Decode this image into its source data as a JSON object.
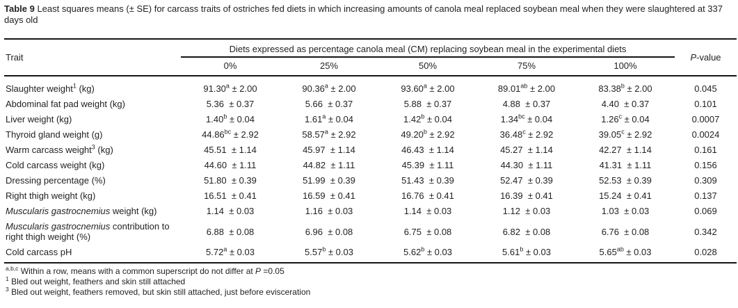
{
  "caption": {
    "label": "Table 9",
    "text": " Least squares means (± SE) for carcass traits of ostriches fed diets in which increasing amounts of canola meal replaced soybean meal when they were slaughtered at 337 days old"
  },
  "header": {
    "trait": "Trait",
    "diets_spanner": "Diets expressed as percentage canola meal (CM) replacing soybean meal in the experimental diets",
    "percent_labels": [
      "0%",
      "25%",
      "50%",
      "75%",
      "100%"
    ],
    "pvalue_italic": "P",
    "pvalue_rest": "-value"
  },
  "table": {
    "rows": [
      {
        "trait": [
          {
            "t": "Slaughter weight"
          },
          {
            "t": "1",
            "s": true
          },
          {
            "t": " (kg)"
          }
        ],
        "cells": [
          {
            "mean": "91.30",
            "sup": "a",
            "se": "2.00"
          },
          {
            "mean": "90.36",
            "sup": "a",
            "se": "2.00"
          },
          {
            "mean": "93.60",
            "sup": "a",
            "se": "2.00"
          },
          {
            "mean": "89.01",
            "sup": "ab",
            "se": "2.00"
          },
          {
            "mean": "83.38",
            "sup": "b",
            "se": "2.00"
          }
        ],
        "p": "0.045"
      },
      {
        "trait": [
          {
            "t": "Abdominal fat pad weight (kg)"
          }
        ],
        "cells": [
          {
            "mean": "5.36",
            "sup": "",
            "se": "0.37"
          },
          {
            "mean": "5.66",
            "sup": "",
            "se": "0.37"
          },
          {
            "mean": "5.88",
            "sup": "",
            "se": "0.37"
          },
          {
            "mean": "4.88",
            "sup": "",
            "se": "0.37"
          },
          {
            "mean": "4.40",
            "sup": "",
            "se": "0.37"
          }
        ],
        "p": "0.101"
      },
      {
        "trait": [
          {
            "t": "Liver weight (kg)"
          }
        ],
        "cells": [
          {
            "mean": "1.40",
            "sup": "b",
            "se": "0.04"
          },
          {
            "mean": "1.61",
            "sup": "a",
            "se": "0.04"
          },
          {
            "mean": "1.42",
            "sup": "b",
            "se": "0.04"
          },
          {
            "mean": "1.34",
            "sup": "bc",
            "se": "0.04"
          },
          {
            "mean": "1.26",
            "sup": "c",
            "se": "0.04"
          }
        ],
        "p": "0.0007"
      },
      {
        "trait": [
          {
            "t": "Thyroid gland weight (g)"
          }
        ],
        "cells": [
          {
            "mean": "44.86",
            "sup": "bc",
            "se": "2.92"
          },
          {
            "mean": "58.57",
            "sup": "a",
            "se": "2.92"
          },
          {
            "mean": "49.20",
            "sup": "b",
            "se": "2.92"
          },
          {
            "mean": "36.48",
            "sup": "c",
            "se": "2.92"
          },
          {
            "mean": "39.05",
            "sup": "c",
            "se": "2.92"
          }
        ],
        "p": "0.0024"
      },
      {
        "trait": [
          {
            "t": "Warm carcass weight"
          },
          {
            "t": "3",
            "s": true
          },
          {
            "t": " (kg)"
          }
        ],
        "cells": [
          {
            "mean": "45.51",
            "sup": "",
            "se": "1.14"
          },
          {
            "mean": "45.97",
            "sup": "",
            "se": "1.14"
          },
          {
            "mean": "46.43",
            "sup": "",
            "se": "1.14"
          },
          {
            "mean": "45.27",
            "sup": "",
            "se": "1.14"
          },
          {
            "mean": "42.27",
            "sup": "",
            "se": "1.14"
          }
        ],
        "p": "0.161"
      },
      {
        "trait": [
          {
            "t": "Cold carcass weight (kg)"
          }
        ],
        "cells": [
          {
            "mean": "44.60",
            "sup": "",
            "se": "1.11"
          },
          {
            "mean": "44.82",
            "sup": "",
            "se": "1.11"
          },
          {
            "mean": "45.39",
            "sup": "",
            "se": "1.11"
          },
          {
            "mean": "44.30",
            "sup": "",
            "se": "1.11"
          },
          {
            "mean": "41.31",
            "sup": "",
            "se": "1.11"
          }
        ],
        "p": "0.156"
      },
      {
        "trait": [
          {
            "t": "Dressing percentage (%)"
          }
        ],
        "cells": [
          {
            "mean": "51.80",
            "sup": "",
            "se": "0.39"
          },
          {
            "mean": "51.99",
            "sup": "",
            "se": "0.39"
          },
          {
            "mean": "51.43",
            "sup": "",
            "se": "0.39"
          },
          {
            "mean": "52.47",
            "sup": "",
            "se": "0.39"
          },
          {
            "mean": "52.53",
            "sup": "",
            "se": "0.39"
          }
        ],
        "p": "0.309"
      },
      {
        "trait": [
          {
            "t": "Right thigh weight (kg)"
          }
        ],
        "cells": [
          {
            "mean": "16.51",
            "sup": "",
            "se": "0.41"
          },
          {
            "mean": "16.59",
            "sup": "",
            "se": "0.41"
          },
          {
            "mean": "16.76",
            "sup": "",
            "se": "0.41"
          },
          {
            "mean": "16.39",
            "sup": "",
            "se": "0.41"
          },
          {
            "mean": "15.24",
            "sup": "",
            "se": "0.41"
          }
        ],
        "p": "0.137"
      },
      {
        "trait": [
          {
            "t": "Muscularis gastrocnemius",
            "i": true
          },
          {
            "t": " weight (kg)"
          }
        ],
        "cells": [
          {
            "mean": "1.14",
            "sup": "",
            "se": "0.03"
          },
          {
            "mean": "1.16",
            "sup": "",
            "se": "0.03"
          },
          {
            "mean": "1.14",
            "sup": "",
            "se": "0.03"
          },
          {
            "mean": "1.12",
            "sup": "",
            "se": "0.03"
          },
          {
            "mean": "1.03",
            "sup": "",
            "se": "0.03"
          }
        ],
        "p": "0.069"
      },
      {
        "trait": [
          {
            "t": "Muscularis gastrocnemius",
            "i": true
          },
          {
            "t": " contribution to right thigh weight (%)"
          }
        ],
        "cells": [
          {
            "mean": "6.88",
            "sup": "",
            "se": "0.08"
          },
          {
            "mean": "6.96",
            "sup": "",
            "se": "0.08"
          },
          {
            "mean": "6.75",
            "sup": "",
            "se": "0.08"
          },
          {
            "mean": "6.82",
            "sup": "",
            "se": "0.08"
          },
          {
            "mean": "6.76",
            "sup": "",
            "se": "0.08"
          }
        ],
        "p": "0.342"
      },
      {
        "trait": [
          {
            "t": "Cold carcass pH"
          }
        ],
        "cells": [
          {
            "mean": "5.72",
            "sup": "a",
            "se": "0.03"
          },
          {
            "mean": "5.57",
            "sup": "b",
            "se": "0.03"
          },
          {
            "mean": "5.62",
            "sup": "b",
            "se": "0.03"
          },
          {
            "mean": "5.61",
            "sup": "b",
            "se": "0.03"
          },
          {
            "mean": "5.65",
            "sup": "ab",
            "se": "0.03"
          }
        ],
        "p": "0.028"
      }
    ]
  },
  "footnotes": [
    [
      {
        "t": "a,b,c",
        "s": true
      },
      {
        "t": " Within a row, means with a common superscript do not differ at "
      },
      {
        "t": "P",
        "i": true
      },
      {
        "t": " =0.05"
      }
    ],
    [
      {
        "t": "1",
        "s": true
      },
      {
        "t": " Bled out weight, feathers and skin still attached"
      }
    ],
    [
      {
        "t": "3",
        "s": true
      },
      {
        "t": " Bled out weight, feathers removed, but skin still attached, just before evisceration"
      }
    ]
  ],
  "colors": {
    "text": "#222222",
    "rule": "#141414",
    "background": "#ffffff"
  }
}
